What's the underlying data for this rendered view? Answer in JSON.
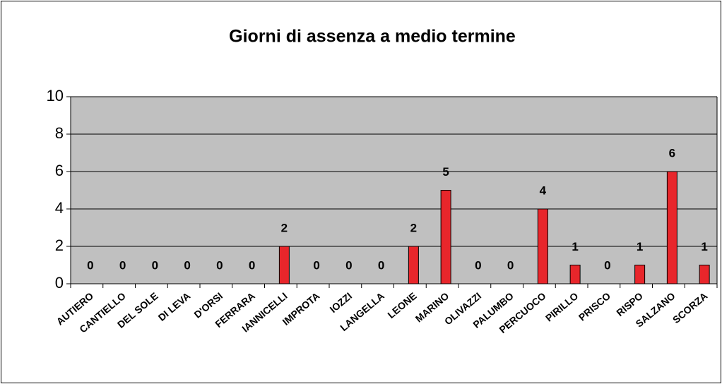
{
  "chart_data": {
    "type": "bar",
    "title": "Giorni di assenza a medio termine",
    "categories": [
      "AUTIERO",
      "CANTIELLO",
      "DEL SOLE",
      "DI LEVA",
      "D'ORSI",
      "FERRARA",
      "IANNICELLI",
      "IMPROTA",
      "IOZZI",
      "LANGELLA",
      "LEONE",
      "MARINO",
      "OLIVAZZI",
      "PALUMBO",
      "PERCUOCO",
      "PIRILLO",
      "PRISCO",
      "RISPO",
      "SALZANO",
      "SCORZA"
    ],
    "values": [
      0,
      0,
      0,
      0,
      0,
      0,
      2,
      0,
      0,
      0,
      2,
      5,
      0,
      0,
      4,
      1,
      0,
      1,
      6,
      1
    ],
    "color": "#e8262b",
    "ylim": [
      0,
      10
    ],
    "yticks": [
      0,
      2,
      4,
      6,
      8,
      10
    ],
    "grid": true
  }
}
